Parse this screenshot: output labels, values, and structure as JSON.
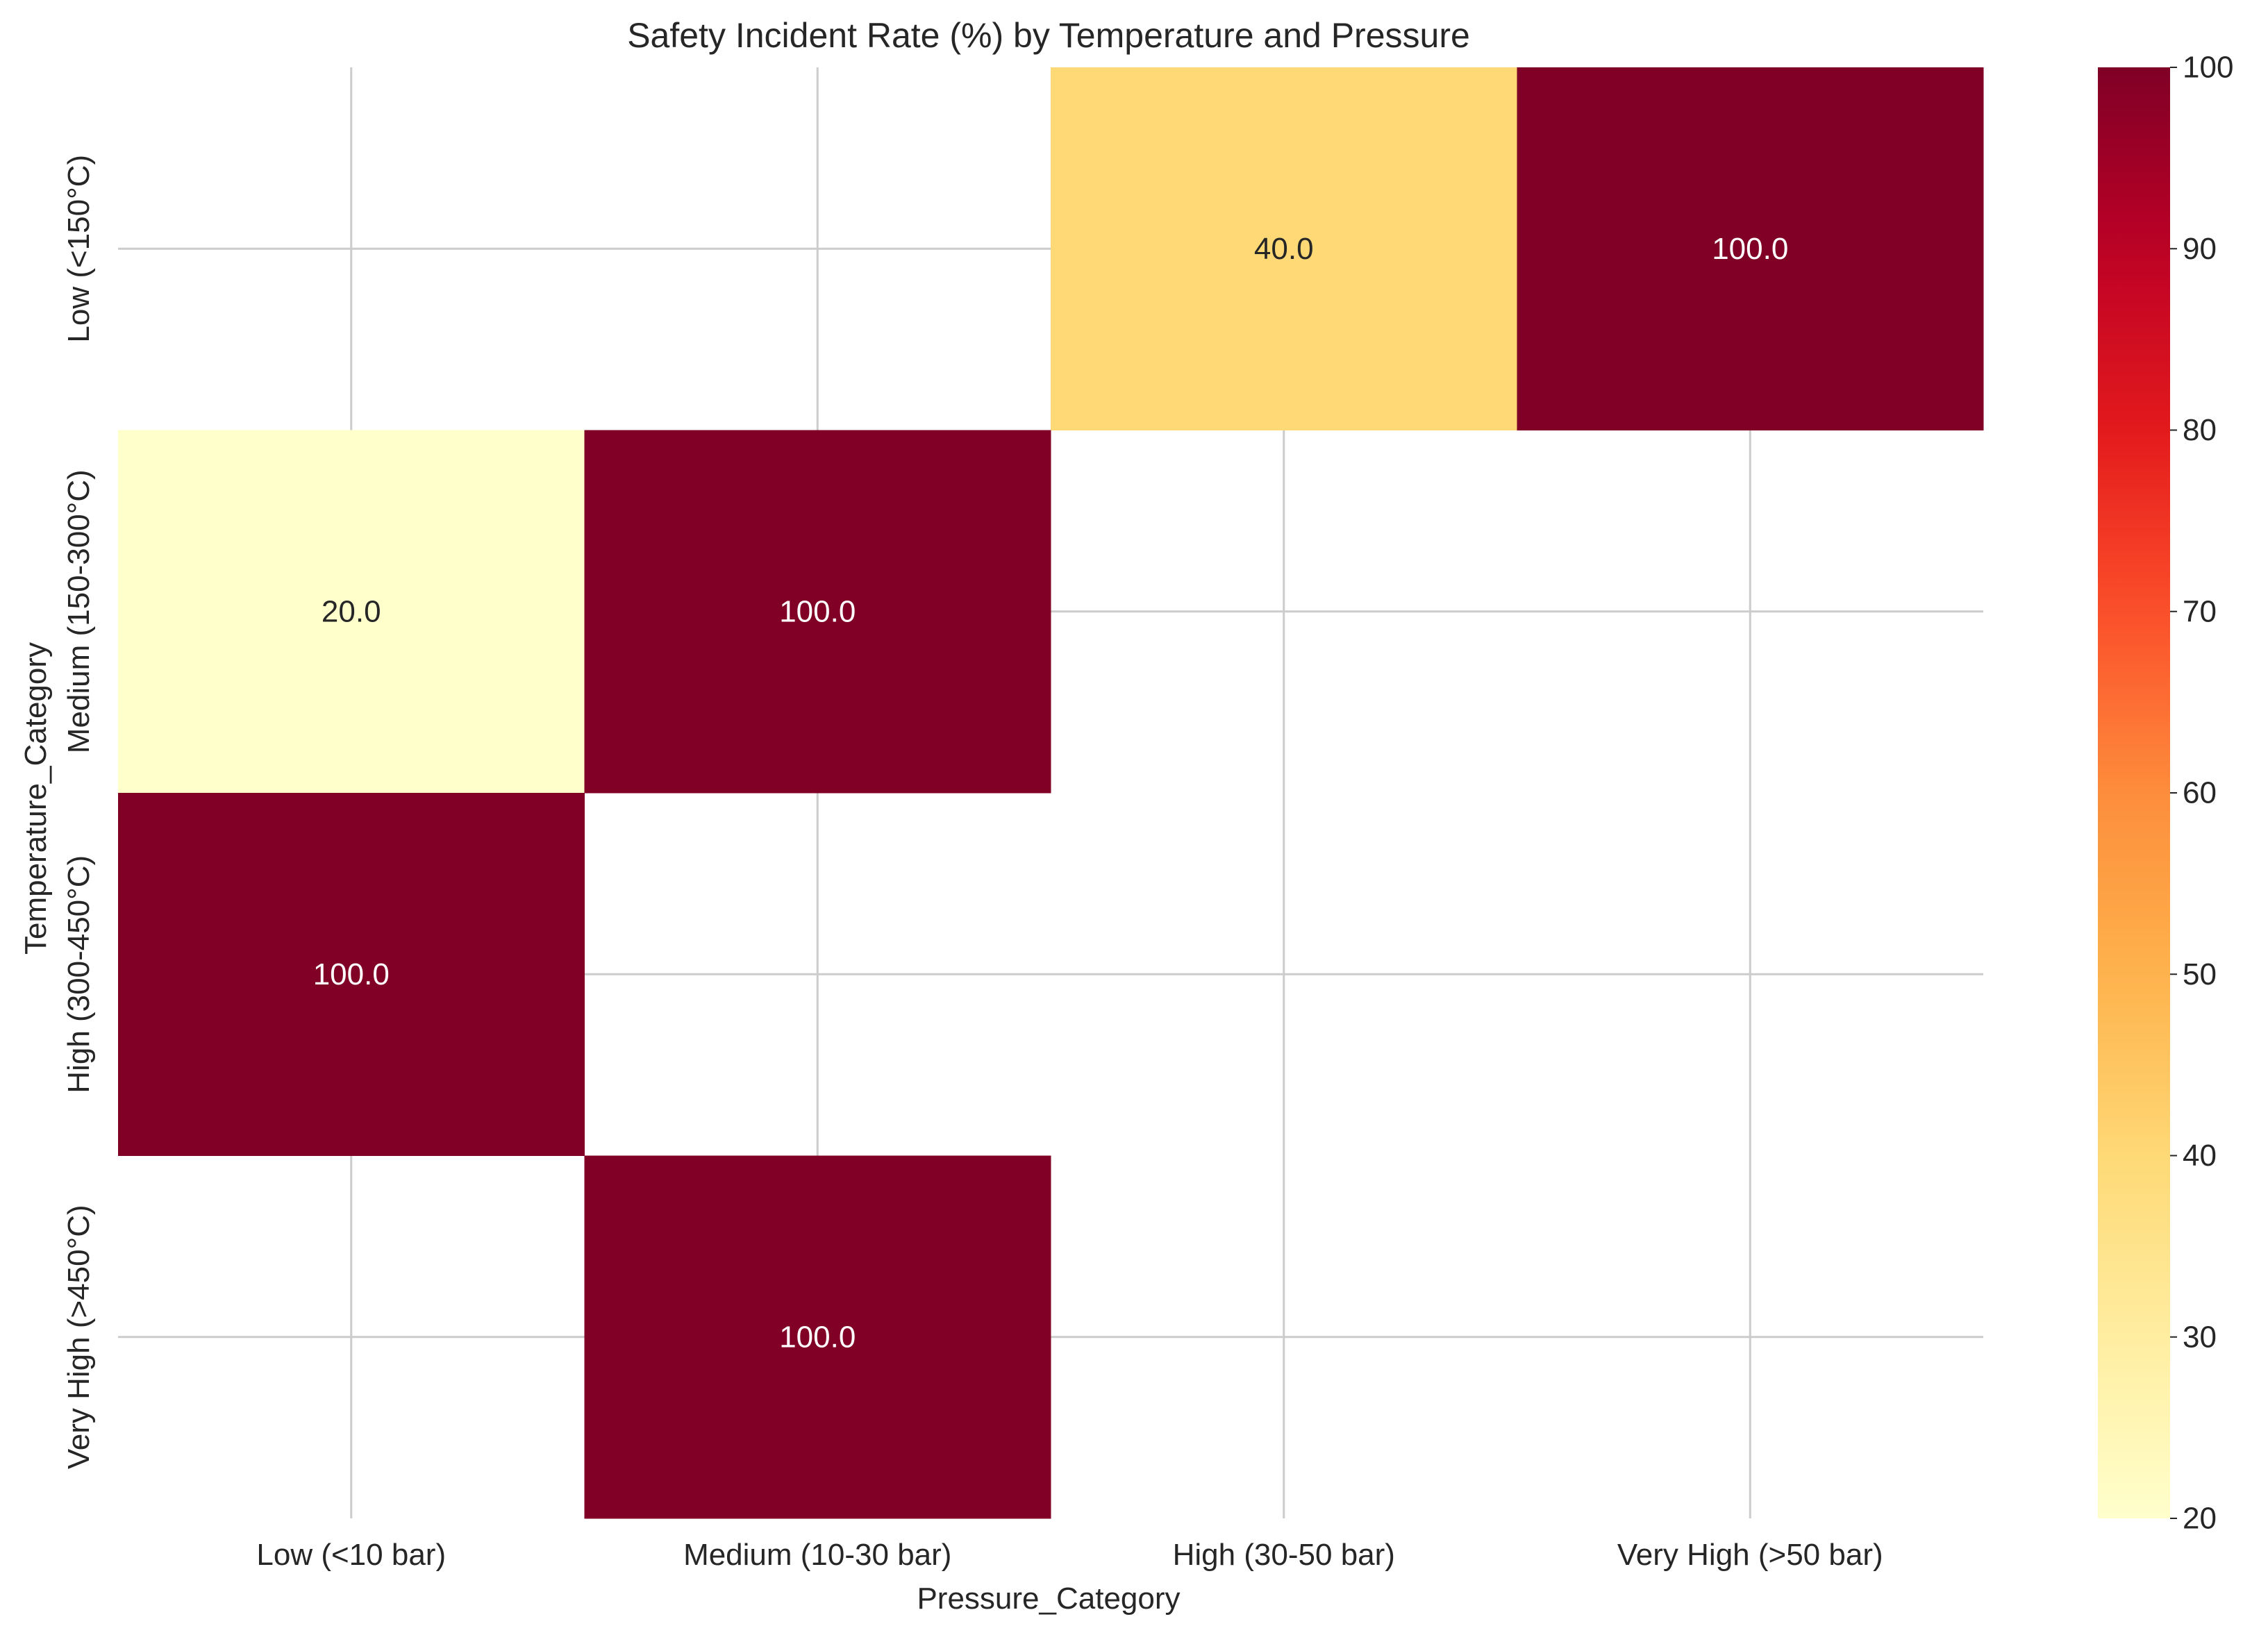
{
  "chart_data": {
    "type": "heatmap",
    "title": "Safety Incident Rate (%) by Temperature and Pressure",
    "xlabel": "Pressure_Category",
    "ylabel": "Temperature_Category",
    "x_categories": [
      "Low (<10 bar)",
      "Medium (10-30 bar)",
      "High (30-50 bar)",
      "Very High (>50 bar)"
    ],
    "y_categories": [
      "Low (<150°C)",
      "Medium (150-300°C)",
      "High (300-450°C)",
      "Very High (>450°C)"
    ],
    "values": [
      [
        null,
        null,
        40.0,
        100.0
      ],
      [
        20.0,
        100.0,
        null,
        null
      ],
      [
        100.0,
        null,
        null,
        null
      ],
      [
        null,
        100.0,
        null,
        null
      ]
    ],
    "value_format": "0.0",
    "colormap": "YlOrRd",
    "color_range": [
      20,
      100
    ],
    "colorbar_ticks": [
      20,
      30,
      40,
      50,
      60,
      70,
      80,
      90,
      100
    ],
    "grid": true,
    "colors": {
      "background": "#ffffff",
      "grid": "#cccccc",
      "text": "#262626"
    }
  }
}
